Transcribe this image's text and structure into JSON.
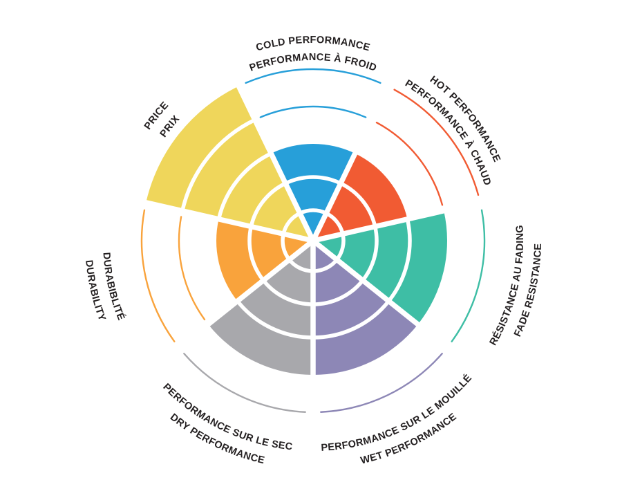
{
  "page": {
    "background_color": "#FFFFFF",
    "text_color": "#231F20"
  },
  "chart_data": {
    "type": "radial-bar",
    "layout": "polar-sectors",
    "order": "clockwise-from-top",
    "grid": "white ring dividers inside filled wedges, thin colored arcs for unfilled rings",
    "legend_position": "curved labels around perimeter, bilingual (two stacked curved lines per sector)",
    "scale": {
      "min": 0,
      "max": 5,
      "rings": 5
    },
    "sectors": [
      {
        "id": "cold-performance",
        "line1": "COLD PERFORMANCE",
        "line2": "PERFORMANCE À FROID",
        "value": 3,
        "color": "#279FD9"
      },
      {
        "id": "hot-performance",
        "line1": "HOT PERFORMANCE",
        "line2": "PERFORMANCE À CHAUD",
        "value": 3,
        "color": "#F15B33"
      },
      {
        "id": "fade-resistance",
        "line1": "RÉSISTANCE AU FADING",
        "line2": "FADE RESISTANCE",
        "value": 4,
        "color": "#3EBEA5"
      },
      {
        "id": "wet-performance",
        "line1": "PERFORMANCE SUR LE MOUILLÉ",
        "line2": "WET PERFORMANCE",
        "value": 4,
        "color": "#8D87B6"
      },
      {
        "id": "dry-performance",
        "line1": "PERFORMANCE SUR LE SEC",
        "line2": "DRY PERFORMANCE",
        "value": 4,
        "color": "#A8A8AC"
      },
      {
        "id": "durability",
        "line1": "DURABIBLITÉ",
        "line2": "DURABILITY",
        "value": 3,
        "color": "#F9A33C"
      },
      {
        "id": "price",
        "line1": "PRICE",
        "line2": "PRIX",
        "value": 5,
        "color": "#EFD65B"
      }
    ]
  }
}
